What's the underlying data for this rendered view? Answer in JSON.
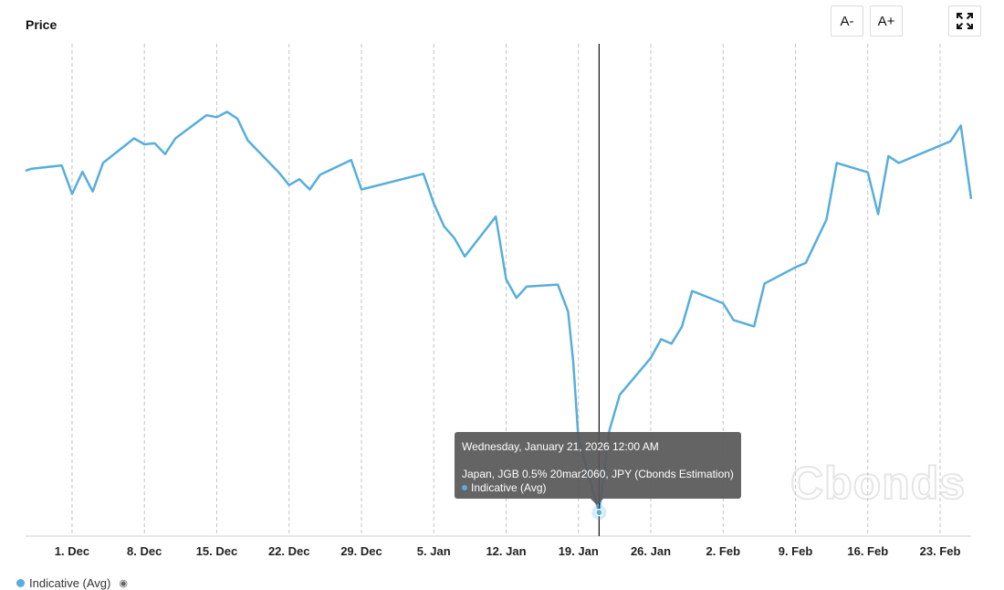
{
  "header": {
    "title": "Price"
  },
  "toolbar": {
    "font_smaller": "A-",
    "font_larger": "A+",
    "expand_icon": "fullscreen-icon"
  },
  "tooltip": {
    "date": "Wednesday, January 21, 2026 12:00 AM",
    "bond": "Japan, JGB 0.5% 20mar2060, JPY (Cbonds Estimation)",
    "series": "Indicative (Avg)"
  },
  "legend": {
    "label": "Indicative (Avg)",
    "icon": "eye-icon"
  },
  "watermark": "Cbonds",
  "colors": {
    "line": "#57aedb",
    "grid": "#c4c4c4",
    "crosshair": "#111111"
  },
  "chart_data": {
    "type": "line",
    "x_ticks": [
      "1. Dec",
      "8. Dec",
      "15. Dec",
      "22. Dec",
      "29. Dec",
      "5. Jan",
      "12. Jan",
      "19. Jan",
      "26. Jan",
      "2. Feb",
      "9. Feb",
      "16. Feb",
      "23. Feb"
    ],
    "x_tick_dates": [
      "2025-12-01",
      "2025-12-08",
      "2025-12-15",
      "2025-12-22",
      "2025-12-29",
      "2026-01-05",
      "2026-01-12",
      "2026-01-19",
      "2026-01-26",
      "2026-02-02",
      "2026-02-09",
      "2026-02-16",
      "2026-02-23"
    ],
    "xlim": [
      "2025-11-26T12:00",
      "2026-02-26"
    ],
    "ylim": [
      0,
      100
    ],
    "grid": "vertical-dashed",
    "legend": "bottom-left",
    "series": [
      {
        "name": "Indicative (Avg)",
        "points": [
          [
            "2025-11-26T12:00",
            74.2
          ],
          [
            "2025-11-27",
            74.6
          ],
          [
            "2025-11-30",
            75.3
          ],
          [
            "2025-12-01",
            69.5
          ],
          [
            "2025-12-02",
            74.0
          ],
          [
            "2025-12-03",
            70.0
          ],
          [
            "2025-12-04",
            75.8
          ],
          [
            "2025-12-07",
            80.8
          ],
          [
            "2025-12-08",
            79.6
          ],
          [
            "2025-12-09",
            79.8
          ],
          [
            "2025-12-10",
            77.6
          ],
          [
            "2025-12-11",
            80.8
          ],
          [
            "2025-12-14",
            85.5
          ],
          [
            "2025-12-15",
            85.1
          ],
          [
            "2025-12-16",
            86.2
          ],
          [
            "2025-12-17",
            84.8
          ],
          [
            "2025-12-18",
            80.4
          ],
          [
            "2025-12-21",
            73.9
          ],
          [
            "2025-12-22",
            71.3
          ],
          [
            "2025-12-23",
            72.5
          ],
          [
            "2025-12-24",
            70.4
          ],
          [
            "2025-12-25",
            73.4
          ],
          [
            "2025-12-28",
            76.4
          ],
          [
            "2025-12-29",
            70.4
          ],
          [
            "2026-01-04",
            73.6
          ],
          [
            "2026-01-05",
            67.6
          ],
          [
            "2026-01-06",
            62.9
          ],
          [
            "2026-01-07",
            60.5
          ],
          [
            "2026-01-08",
            56.8
          ],
          [
            "2026-01-11",
            64.9
          ],
          [
            "2026-01-12",
            52.2
          ],
          [
            "2026-01-13",
            48.4
          ],
          [
            "2026-01-14",
            50.7
          ],
          [
            "2026-01-17",
            51.1
          ],
          [
            "2026-01-18",
            45.6
          ],
          [
            "2026-01-18T12:00",
            35.3
          ],
          [
            "2026-01-19",
            19.8
          ],
          [
            "2026-01-21",
            4.8
          ],
          [
            "2026-01-22",
            21.5
          ],
          [
            "2026-01-23",
            28.7
          ],
          [
            "2026-01-26",
            36.2
          ],
          [
            "2026-01-27",
            40.0
          ],
          [
            "2026-01-28",
            39.1
          ],
          [
            "2026-01-29",
            42.5
          ],
          [
            "2026-01-30",
            49.8
          ],
          [
            "2026-02-02",
            47.3
          ],
          [
            "2026-02-03",
            43.9
          ],
          [
            "2026-02-05",
            42.6
          ],
          [
            "2026-02-06",
            51.3
          ],
          [
            "2026-02-09",
            54.6
          ],
          [
            "2026-02-10",
            55.5
          ],
          [
            "2026-02-12",
            64.3
          ],
          [
            "2026-02-13",
            75.8
          ],
          [
            "2026-02-16",
            73.9
          ],
          [
            "2026-02-17",
            65.4
          ],
          [
            "2026-02-18",
            77.2
          ],
          [
            "2026-02-19",
            75.8
          ],
          [
            "2026-02-24",
            80.2
          ],
          [
            "2026-02-25",
            83.4
          ],
          [
            "2026-02-26",
            68.5
          ]
        ]
      }
    ],
    "highlight": {
      "date": "2026-01-21",
      "y": 4.8
    }
  }
}
